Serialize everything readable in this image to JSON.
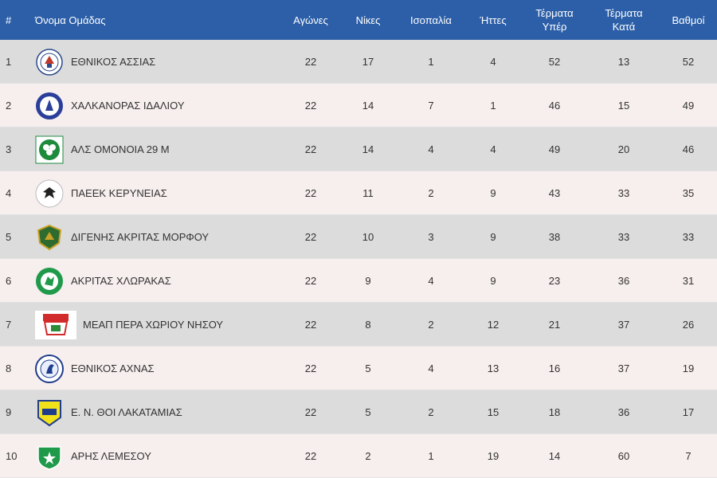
{
  "table": {
    "headers": {
      "rank": "#",
      "team": "Όνομα Ομάδας",
      "played": "Αγώνες",
      "wins": "Νίκες",
      "draws": "Ισοπαλία",
      "losses": "Ήττες",
      "goals_for": "Τέρματα\nΥπέρ",
      "goals_against": "Τέρματα\nΚατά",
      "points": "Βαθμοί"
    },
    "rows": [
      {
        "rank": "1",
        "team": "ΕΘΝΙΚΟΣ ΑΣΣΙΑΣ",
        "played": "22",
        "wins": "17",
        "draws": "1",
        "losses": "4",
        "goals_for": "52",
        "goals_against": "13",
        "points": "52",
        "logo": "ethnikos-assias-logo"
      },
      {
        "rank": "2",
        "team": "ΧΑΛΚΑΝΟΡΑΣ ΙΔΑΛΙΟΥ",
        "played": "22",
        "wins": "14",
        "draws": "7",
        "losses": "1",
        "goals_for": "46",
        "goals_against": "15",
        "points": "49",
        "logo": "chalkanoras-idaliou-logo"
      },
      {
        "rank": "3",
        "team": "ΑΛΣ ΟΜΟΝΟΙΑ 29 Μ",
        "played": "22",
        "wins": "14",
        "draws": "4",
        "losses": "4",
        "goals_for": "49",
        "goals_against": "20",
        "points": "46",
        "logo": "omonoia-29m-logo"
      },
      {
        "rank": "4",
        "team": "ΠΑΕΕΚ ΚΕΡΥΝΕΙΑΣ",
        "played": "22",
        "wins": "11",
        "draws": "2",
        "losses": "9",
        "goals_for": "43",
        "goals_against": "33",
        "points": "35",
        "logo": "paeek-kyreneias-logo"
      },
      {
        "rank": "5",
        "team": "ΔΙΓΕΝΗΣ ΑΚΡΙΤΑΣ ΜΟΡΦΟΥ",
        "played": "22",
        "wins": "10",
        "draws": "3",
        "losses": "9",
        "goals_for": "38",
        "goals_against": "33",
        "points": "33",
        "logo": "digenis-morfou-logo"
      },
      {
        "rank": "6",
        "team": "ΑΚΡΙΤΑΣ ΧΛΩΡΑΚΑΣ",
        "played": "22",
        "wins": "9",
        "draws": "4",
        "losses": "9",
        "goals_for": "23",
        "goals_against": "36",
        "points": "31",
        "logo": "akritas-chlorakas-logo"
      },
      {
        "rank": "7",
        "team": "ΜΕΑΠ ΠΕΡΑ ΧΩΡΙΟΥ ΝΗΣΟΥ",
        "played": "22",
        "wins": "8",
        "draws": "2",
        "losses": "12",
        "goals_for": "21",
        "goals_against": "37",
        "points": "26",
        "logo": "meap-logo"
      },
      {
        "rank": "8",
        "team": "ΕΘΝΙΚΟΣ ΑΧΝΑΣ",
        "played": "22",
        "wins": "5",
        "draws": "4",
        "losses": "13",
        "goals_for": "16",
        "goals_against": "37",
        "points": "19",
        "logo": "ethnikos-achnas-logo"
      },
      {
        "rank": "9",
        "team": "Ε. Ν. ΘΟΙ ΛΑΚΑΤΑΜΙΑΣ",
        "played": "22",
        "wins": "5",
        "draws": "2",
        "losses": "15",
        "goals_for": "18",
        "goals_against": "36",
        "points": "17",
        "logo": "thoi-lakatamias-logo"
      },
      {
        "rank": "10",
        "team": "ΑΡΗΣ ΛΕΜΕΣΟΥ",
        "played": "22",
        "wins": "2",
        "draws": "1",
        "losses": "19",
        "goals_for": "14",
        "goals_against": "60",
        "points": "7",
        "logo": "aris-lemesou-logo"
      }
    ]
  },
  "colors": {
    "header_bg": "#2c5fa8",
    "row_odd_bg": "#dcdcdc",
    "row_even_bg": "#f7eeee",
    "text": "#333333"
  }
}
